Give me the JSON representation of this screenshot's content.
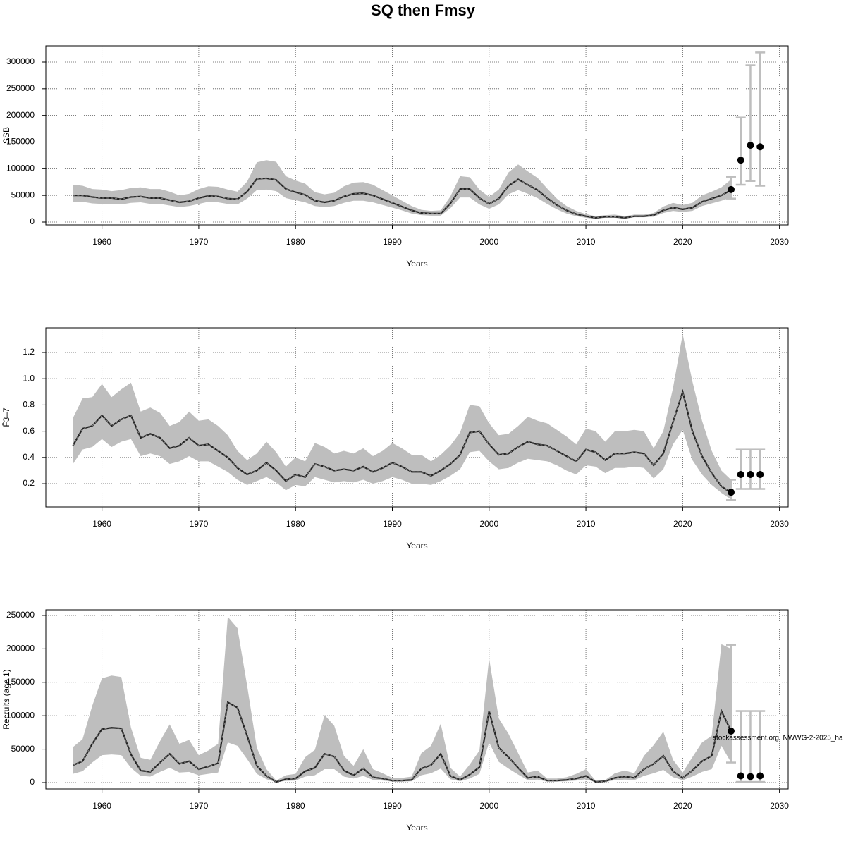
{
  "title": "SQ then Fmsy",
  "chart_data": [
    {
      "type": "band-line",
      "ylabel": "SSB",
      "xlabel": "Years",
      "grid": true,
      "band_color": "#bebebe",
      "line_color": "#222222",
      "point_color": "#000000",
      "xlim": [
        1954.2,
        2030.9
      ],
      "xticks": [
        1960,
        1970,
        1980,
        1990,
        2000,
        2010,
        2020,
        2030
      ],
      "ylim": [
        -5300,
        330400
      ],
      "yticks": [
        0,
        50000,
        100000,
        150000,
        200000,
        250000,
        300000
      ],
      "x": [
        1957,
        1958,
        1959,
        1960,
        1961,
        1962,
        1963,
        1964,
        1965,
        1966,
        1967,
        1968,
        1969,
        1970,
        1971,
        1972,
        1973,
        1974,
        1975,
        1976,
        1977,
        1978,
        1979,
        1980,
        1981,
        1982,
        1983,
        1984,
        1985,
        1986,
        1987,
        1988,
        1989,
        1990,
        1991,
        1992,
        1993,
        1994,
        1995,
        1996,
        1997,
        1998,
        1999,
        2000,
        2001,
        2002,
        2003,
        2004,
        2005,
        2006,
        2007,
        2008,
        2009,
        2010,
        2011,
        2012,
        2013,
        2014,
        2015,
        2016,
        2017,
        2018,
        2019,
        2020,
        2021,
        2022,
        2023,
        2024,
        2025
      ],
      "values": [
        50000,
        50000,
        47000,
        45000,
        45000,
        43000,
        47000,
        48000,
        45000,
        45000,
        41000,
        37000,
        39000,
        45000,
        49000,
        48000,
        44000,
        43000,
        57000,
        81000,
        82000,
        79000,
        62000,
        56000,
        51000,
        40000,
        37000,
        40000,
        48000,
        53000,
        54000,
        50000,
        43000,
        36000,
        29000,
        22000,
        17000,
        16000,
        16000,
        35000,
        62000,
        62000,
        45000,
        34000,
        44000,
        68000,
        80000,
        70000,
        60000,
        45000,
        32000,
        22000,
        15000,
        11000,
        8000,
        10000,
        10000,
        8000,
        11000,
        11000,
        13000,
        22000,
        27000,
        24000,
        27000,
        38000,
        44000,
        50000,
        60000
      ],
      "lower": [
        37000,
        38000,
        35000,
        34000,
        34000,
        33000,
        36000,
        37000,
        34000,
        34000,
        31000,
        28000,
        30000,
        34000,
        38000,
        37000,
        34000,
        33000,
        44000,
        60000,
        61000,
        58000,
        45000,
        41000,
        37000,
        30000,
        28000,
        30000,
        36000,
        40000,
        40000,
        37000,
        32000,
        27000,
        22000,
        16000,
        13000,
        12000,
        12000,
        26000,
        46000,
        46000,
        33000,
        25000,
        33000,
        52000,
        60000,
        53000,
        45000,
        34000,
        24000,
        16000,
        11000,
        8000,
        6000,
        8000,
        8000,
        6000,
        9000,
        9000,
        10000,
        17000,
        21000,
        19000,
        21000,
        30000,
        35000,
        40000,
        46000
      ],
      "upper": [
        70000,
        68000,
        62000,
        61000,
        58000,
        60000,
        64000,
        65000,
        62000,
        62000,
        57000,
        50000,
        53000,
        62000,
        67000,
        66000,
        61000,
        57000,
        76000,
        112000,
        116000,
        113000,
        86000,
        78000,
        72000,
        56000,
        52000,
        55000,
        67000,
        74000,
        75000,
        70000,
        60000,
        50000,
        40000,
        30000,
        23000,
        21000,
        22000,
        48000,
        86000,
        84000,
        61000,
        47000,
        61000,
        93000,
        108000,
        95000,
        83000,
        63000,
        44000,
        30000,
        21000,
        15000,
        11000,
        13000,
        14000,
        11000,
        14000,
        14000,
        17000,
        29000,
        36000,
        32000,
        36000,
        50000,
        57000,
        65000,
        80000
      ],
      "forecast": {
        "x": [
          2025,
          2026,
          2027,
          2028
        ],
        "values": [
          61000,
          116000,
          144000,
          141000
        ],
        "lower": [
          44000,
          70000,
          77000,
          68000
        ],
        "upper": [
          85000,
          196000,
          294000,
          318000
        ]
      }
    },
    {
      "type": "band-line",
      "ylabel": "F̄3–7",
      "xlabel": "Years",
      "grid": true,
      "band_color": "#bebebe",
      "line_color": "#222222",
      "point_color": "#000000",
      "xlim": [
        1954.2,
        2030.9
      ],
      "xticks": [
        1960,
        1970,
        1980,
        1990,
        2000,
        2010,
        2020,
        2030
      ],
      "ylim": [
        0.023,
        1.388
      ],
      "yticks": [
        0.2,
        0.4,
        0.6,
        0.8,
        {
          "value": 1,
          "label": "1.0"
        },
        1.2
      ],
      "x": [
        1957,
        1958,
        1959,
        1960,
        1961,
        1962,
        1963,
        1964,
        1965,
        1966,
        1967,
        1968,
        1969,
        1970,
        1971,
        1972,
        1973,
        1974,
        1975,
        1976,
        1977,
        1978,
        1979,
        1980,
        1981,
        1982,
        1983,
        1984,
        1985,
        1986,
        1987,
        1988,
        1989,
        1990,
        1991,
        1992,
        1993,
        1994,
        1995,
        1996,
        1997,
        1998,
        1999,
        2000,
        2001,
        2002,
        2003,
        2004,
        2005,
        2006,
        2007,
        2008,
        2009,
        2010,
        2011,
        2012,
        2013,
        2014,
        2015,
        2016,
        2017,
        2018,
        2019,
        2020,
        2021,
        2022,
        2023,
        2024,
        2025
      ],
      "values": [
        0.49,
        0.62,
        0.64,
        0.72,
        0.64,
        0.69,
        0.72,
        0.55,
        0.58,
        0.55,
        0.47,
        0.49,
        0.55,
        0.49,
        0.5,
        0.45,
        0.4,
        0.32,
        0.27,
        0.3,
        0.36,
        0.3,
        0.22,
        0.27,
        0.25,
        0.35,
        0.33,
        0.3,
        0.31,
        0.3,
        0.33,
        0.29,
        0.32,
        0.36,
        0.33,
        0.29,
        0.29,
        0.26,
        0.3,
        0.35,
        0.42,
        0.59,
        0.6,
        0.5,
        0.42,
        0.43,
        0.48,
        0.52,
        0.5,
        0.49,
        0.45,
        0.41,
        0.37,
        0.46,
        0.44,
        0.38,
        0.43,
        0.43,
        0.44,
        0.43,
        0.34,
        0.43,
        0.67,
        0.9,
        0.6,
        0.41,
        0.28,
        0.18,
        0.13
      ],
      "lower": [
        0.35,
        0.46,
        0.48,
        0.54,
        0.48,
        0.52,
        0.54,
        0.41,
        0.43,
        0.41,
        0.35,
        0.37,
        0.41,
        0.37,
        0.37,
        0.33,
        0.29,
        0.23,
        0.19,
        0.22,
        0.25,
        0.21,
        0.15,
        0.19,
        0.18,
        0.25,
        0.23,
        0.21,
        0.22,
        0.21,
        0.23,
        0.2,
        0.22,
        0.25,
        0.23,
        0.2,
        0.2,
        0.19,
        0.22,
        0.26,
        0.31,
        0.44,
        0.45,
        0.37,
        0.31,
        0.32,
        0.36,
        0.39,
        0.38,
        0.37,
        0.34,
        0.3,
        0.27,
        0.34,
        0.33,
        0.28,
        0.32,
        0.32,
        0.33,
        0.32,
        0.24,
        0.31,
        0.5,
        0.61,
        0.38,
        0.27,
        0.19,
        0.13,
        0.08
      ],
      "upper": [
        0.7,
        0.85,
        0.86,
        0.96,
        0.86,
        0.92,
        0.97,
        0.75,
        0.78,
        0.74,
        0.64,
        0.67,
        0.75,
        0.68,
        0.69,
        0.64,
        0.57,
        0.45,
        0.38,
        0.43,
        0.52,
        0.44,
        0.33,
        0.4,
        0.37,
        0.51,
        0.48,
        0.43,
        0.45,
        0.43,
        0.47,
        0.41,
        0.45,
        0.51,
        0.47,
        0.42,
        0.42,
        0.37,
        0.42,
        0.49,
        0.59,
        0.8,
        0.79,
        0.66,
        0.57,
        0.58,
        0.64,
        0.71,
        0.68,
        0.66,
        0.61,
        0.56,
        0.5,
        0.62,
        0.6,
        0.52,
        0.6,
        0.6,
        0.61,
        0.6,
        0.47,
        0.6,
        0.93,
        1.34,
        0.98,
        0.68,
        0.45,
        0.3,
        0.23
      ],
      "forecast": {
        "x": [
          2025,
          2026,
          2027,
          2028
        ],
        "values": [
          0.135,
          0.27,
          0.27,
          0.27
        ],
        "lower": [
          0.075,
          0.16,
          0.16,
          0.16
        ],
        "upper": [
          0.23,
          0.46,
          0.46,
          0.46
        ]
      }
    },
    {
      "type": "band-line",
      "ylabel": "Recruits (age 1)",
      "xlabel": "Years",
      "grid": true,
      "band_color": "#bebebe",
      "line_color": "#222222",
      "point_color": "#000000",
      "annotation": "stockassessment.org, NWWG-2-2025_ha",
      "xlim": [
        1954.2,
        2030.9
      ],
      "xticks": [
        1960,
        1970,
        1980,
        1990,
        2000,
        2010,
        2020,
        2030
      ],
      "ylim": [
        -9500,
        258400
      ],
      "yticks": [
        0,
        50000,
        100000,
        150000,
        200000,
        250000
      ],
      "x": [
        1957,
        1958,
        1959,
        1960,
        1961,
        1962,
        1963,
        1964,
        1965,
        1966,
        1967,
        1968,
        1969,
        1970,
        1971,
        1972,
        1973,
        1974,
        1975,
        1976,
        1977,
        1978,
        1979,
        1980,
        1981,
        1982,
        1983,
        1984,
        1985,
        1986,
        1987,
        1988,
        1989,
        1990,
        1991,
        1992,
        1993,
        1994,
        1995,
        1996,
        1997,
        1998,
        1999,
        2000,
        2001,
        2002,
        2003,
        2004,
        2005,
        2006,
        2007,
        2008,
        2009,
        2010,
        2011,
        2012,
        2013,
        2014,
        2015,
        2016,
        2017,
        2018,
        2019,
        2020,
        2021,
        2022,
        2023,
        2024,
        2025
      ],
      "values": [
        26000,
        32000,
        58000,
        80000,
        82000,
        81000,
        42000,
        18000,
        16000,
        30000,
        43000,
        28000,
        32000,
        20000,
        24000,
        29000,
        120000,
        112000,
        70000,
        25000,
        10000,
        1000,
        5000,
        6000,
        17000,
        22000,
        43000,
        39000,
        18000,
        11000,
        21000,
        8000,
        6000,
        3000,
        3000,
        4000,
        21000,
        26000,
        43000,
        10000,
        4000,
        12000,
        23000,
        107000,
        52000,
        38000,
        22000,
        7000,
        9000,
        3000,
        3000,
        4000,
        6000,
        10000,
        1000,
        2000,
        7000,
        9000,
        7000,
        20000,
        28000,
        40000,
        17000,
        7000,
        18000,
        32000,
        40000,
        107000,
        77000
      ],
      "lower": [
        13000,
        17000,
        30000,
        41000,
        42000,
        41000,
        22000,
        10000,
        9000,
        16000,
        22000,
        15000,
        16000,
        11000,
        13000,
        15000,
        60000,
        55000,
        35000,
        13000,
        5000,
        500,
        2500,
        3000,
        9000,
        11000,
        20000,
        20000,
        9000,
        6000,
        10000,
        4000,
        3000,
        1500,
        1500,
        2000,
        11000,
        14000,
        21000,
        5000,
        2000,
        6000,
        13000,
        60000,
        31000,
        21000,
        12000,
        3500,
        4500,
        1500,
        1500,
        2000,
        3000,
        5000,
        500,
        1000,
        3500,
        4500,
        3500,
        10000,
        14000,
        19000,
        8000,
        3500,
        9000,
        16000,
        20000,
        55000,
        30000
      ],
      "upper": [
        53000,
        65000,
        115000,
        156000,
        160000,
        158000,
        82000,
        37000,
        34000,
        62000,
        87000,
        58000,
        64000,
        41000,
        48000,
        58000,
        248000,
        231000,
        145000,
        52000,
        20000,
        3000,
        11000,
        13000,
        38000,
        49000,
        101000,
        85000,
        40000,
        25000,
        50000,
        20000,
        14000,
        7000,
        7000,
        9000,
        44000,
        55000,
        88000,
        22000,
        9000,
        27000,
        48000,
        186000,
        96000,
        73000,
        44000,
        15000,
        18000,
        6000,
        6000,
        8000,
        13000,
        20000,
        3000,
        4000,
        14000,
        18000,
        14000,
        40000,
        56000,
        76000,
        34000,
        15000,
        38000,
        60000,
        70000,
        207000,
        200000
      ],
      "forecast": {
        "x": [
          2025,
          2026,
          2027,
          2028
        ],
        "values": [
          77000,
          10000,
          9000,
          10000
        ],
        "lower": [
          30000,
          1000,
          1000,
          1000
        ],
        "upper": [
          206000,
          107000,
          107000,
          107000
        ]
      }
    }
  ]
}
